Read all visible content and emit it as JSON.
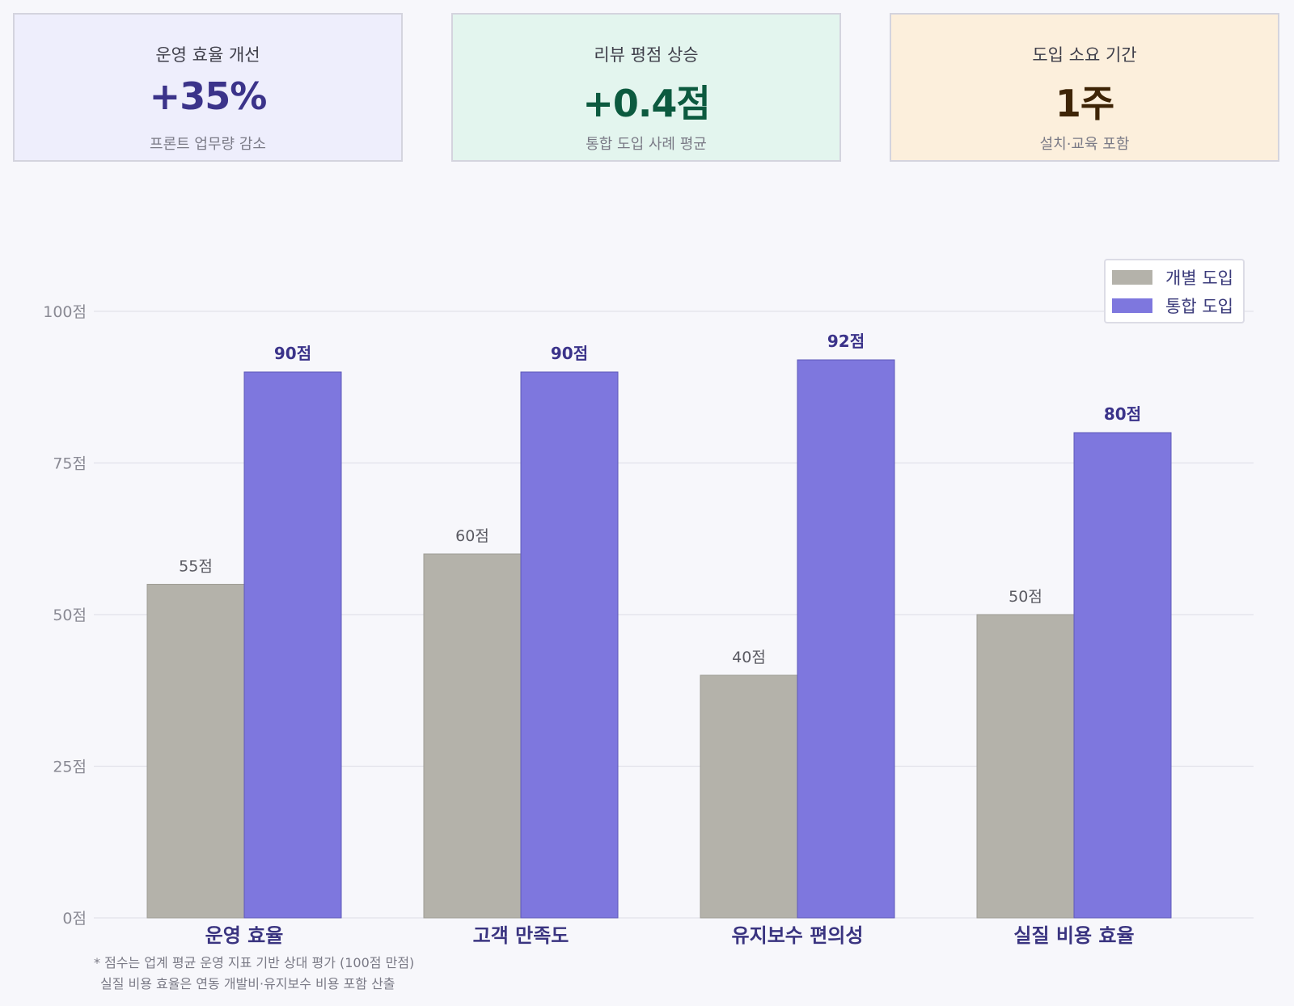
{
  "kpis": [
    {
      "label": "운영 효율 개선",
      "value": "+35%",
      "sub": "프론트 업무량 감소",
      "color": "#3b338a"
    },
    {
      "label": "리뷰 평점 상승",
      "value": "+0.4점",
      "sub": "통합 도입 사례 평균",
      "color": "#0c5a3f"
    },
    {
      "label": "도입 소요 기간",
      "value": "1주",
      "sub": "설치·교육 포함",
      "color": "#3e2406"
    }
  ],
  "chart_data": {
    "type": "bar",
    "categories": [
      "운영 효율",
      "고객 만족도",
      "유지보수 편의성",
      "실질 비용 효율"
    ],
    "series": [
      {
        "name": "개별 도입",
        "values": [
          55,
          60,
          40,
          50
        ],
        "labels": [
          "55점",
          "60점",
          "40점",
          "50점"
        ],
        "color": "#b4b2aa"
      },
      {
        "name": "통합 도입",
        "values": [
          90,
          90,
          92,
          80
        ],
        "labels": [
          "90점",
          "90점",
          "92점",
          "80점"
        ],
        "color": "#7e77de"
      }
    ],
    "ylim": [
      0,
      100
    ],
    "yticks": [
      0,
      25,
      50,
      75,
      100
    ],
    "ytick_labels": [
      "0점",
      "25점",
      "50점",
      "75점",
      "100점"
    ],
    "grid": true,
    "legend_position": "top-right"
  },
  "footnote": {
    "line1": "* 점수는 업계 평균 운영 지표 기반 상대 평가 (100점 만점)",
    "line2": "실질 비용 효율은 연동 개발비·유지보수 비용 포함 산출"
  }
}
